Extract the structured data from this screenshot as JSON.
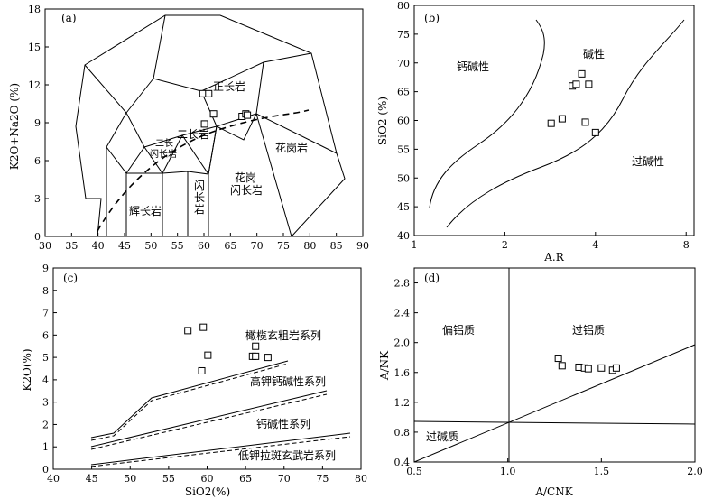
{
  "chart_data": [
    {
      "id": "a",
      "type": "scatter",
      "panel_label": "(a)",
      "xlabel": "",
      "ylabel": "K2O+Na2O (%)",
      "xlim": [
        30,
        90
      ],
      "ylim": [
        0,
        18
      ],
      "xticks": [
        "30",
        "35",
        "40",
        "45",
        "50",
        "55",
        "60",
        "65",
        "70",
        "75",
        "80",
        "85",
        "90"
      ],
      "yticks": [
        "0",
        "3",
        "6",
        "9",
        "12",
        "15",
        "18"
      ],
      "field_labels": {
        "syenite": "正长岩",
        "monzonite": "二长岩",
        "monzodiorite_1": "二长",
        "monzodiorite_2": "闪长岩",
        "diorite_1": "闪",
        "diorite_2": "长",
        "diorite_3": "岩",
        "gabbro": "辉长岩",
        "granodiorite_1": "花岗",
        "granodiorite_2": "闪长岩",
        "granite": "花岗岩"
      },
      "series": [
        {
          "name": "samples",
          "points": [
            [
              59.8,
              11.3
            ],
            [
              60.9,
              11.3
            ],
            [
              61.8,
              9.7
            ],
            [
              60.1,
              8.9
            ],
            [
              67.2,
              9.5
            ],
            [
              67.9,
              9.7
            ],
            [
              68.2,
              9.6
            ]
          ]
        }
      ]
    },
    {
      "id": "b",
      "type": "scatter",
      "panel_label": "(b)",
      "xlabel": "A.R",
      "ylabel": "SiO2 (%)",
      "xlim": [
        1,
        8.5
      ],
      "ylim": [
        40,
        80
      ],
      "xticks": [
        "1",
        "2",
        "4",
        "8"
      ],
      "yticks": [
        "40",
        "45",
        "50",
        "55",
        "60",
        "65",
        "70",
        "75",
        "80"
      ],
      "field_labels": {
        "calc_alkaline": "钙碱性",
        "alkaline": "碱性",
        "peralkaline": "过碱性"
      },
      "series": [
        {
          "name": "samples",
          "points": [
            [
              2.85,
              59.5
            ],
            [
              3.1,
              60.3
            ],
            [
              3.35,
              66
            ],
            [
              3.45,
              66.3
            ],
            [
              3.6,
              68.1
            ],
            [
              3.8,
              66.3
            ],
            [
              3.7,
              59.7
            ],
            [
              4.0,
              57.9
            ]
          ]
        }
      ]
    },
    {
      "id": "c",
      "type": "scatter",
      "panel_label": "(c)",
      "xlabel": "SiO2(%)",
      "ylabel": "K2O(%)",
      "xlim": [
        40,
        80
      ],
      "ylim": [
        0,
        9
      ],
      "xticks": [
        "40",
        "45",
        "50",
        "55",
        "60",
        "65",
        "70",
        "75",
        "80"
      ],
      "yticks": [
        "0",
        "1",
        "2",
        "3",
        "4",
        "5",
        "6",
        "7",
        "8",
        "9"
      ],
      "field_labels": {
        "shoshonite": "橄榄玄粗岩系列",
        "high_k": "高钾钙碱性系列",
        "calc_alkaline": "钙碱性系列",
        "low_k": "低钾拉斑玄武岩系列"
      },
      "series": [
        {
          "name": "samples",
          "points": [
            [
              57.5,
              6.2
            ],
            [
              59.5,
              6.35
            ],
            [
              60.1,
              5.1
            ],
            [
              59.3,
              4.4
            ],
            [
              66.3,
              5.5
            ],
            [
              65.9,
              5.05
            ],
            [
              66.3,
              5.05
            ],
            [
              67.9,
              5.0
            ]
          ]
        }
      ]
    },
    {
      "id": "d",
      "type": "scatter",
      "panel_label": "(d)",
      "xlabel": "A/CNK",
      "ylabel": "A/NK",
      "xlim": [
        0.5,
        2.0
      ],
      "ylim": [
        0.4,
        3.0
      ],
      "xticks": [
        "0.5",
        "1.0",
        "1.5",
        "2.0"
      ],
      "yticks": [
        "0.4",
        "0.8",
        "1.2",
        "1.6",
        "2.0",
        "2.4",
        "2.8"
      ],
      "field_labels": {
        "metaluminous": "偏铝质",
        "peraluminous": "过铝质",
        "peralkaline": "过碱质"
      },
      "series": [
        {
          "name": "samples",
          "points": [
            [
              1.27,
              1.79
            ],
            [
              1.29,
              1.69
            ],
            [
              1.38,
              1.67
            ],
            [
              1.41,
              1.66
            ],
            [
              1.43,
              1.65
            ],
            [
              1.5,
              1.66
            ],
            [
              1.56,
              1.63
            ],
            [
              1.58,
              1.66
            ]
          ]
        }
      ]
    }
  ]
}
